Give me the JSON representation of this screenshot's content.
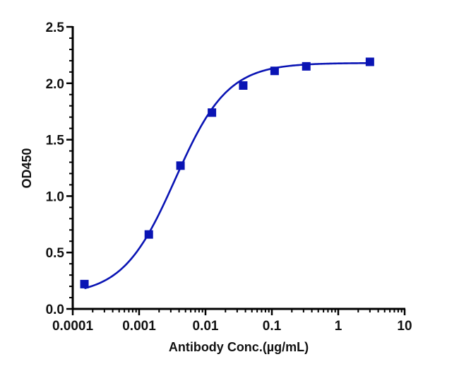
{
  "chart_data": {
    "type": "scatter",
    "title": "",
    "xlabel": "Antibody Conc.(µg/mL)",
    "ylabel": "OD450",
    "xscale": "log",
    "xlim": [
      0.0001,
      10
    ],
    "ylim": [
      0.0,
      2.5
    ],
    "x_ticks": [
      "0.0001",
      "0.001",
      "0.01",
      "0.1",
      "1",
      "10"
    ],
    "y_ticks": [
      "0.0",
      "0.5",
      "1.0",
      "1.5",
      "2.0",
      "2.5"
    ],
    "grid": false,
    "legend": null,
    "series": [
      {
        "name": "OD450",
        "marker": "square",
        "color": "#0a14b4",
        "fit": "4-parameter logistic curve",
        "x": [
          0.00015,
          0.0014,
          0.0042,
          0.0125,
          0.037,
          0.11,
          0.33,
          3.0
        ],
        "y": [
          0.22,
          0.66,
          1.27,
          1.74,
          1.98,
          2.11,
          2.15,
          2.19
        ]
      }
    ]
  },
  "colors": {
    "series": "#0a14b4",
    "axis": "#000000"
  }
}
